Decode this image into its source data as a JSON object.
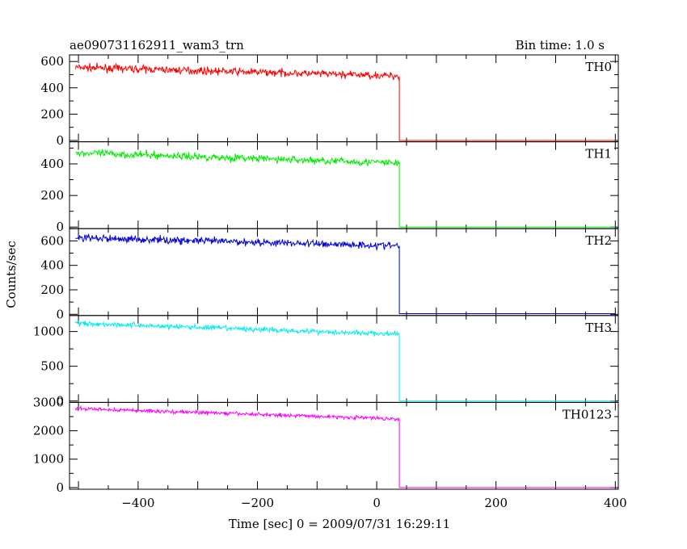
{
  "chart_data": {
    "type": "line",
    "title": "ae090731162911_wam3_trn",
    "bin_time_label": "Bin time: 1.0 s",
    "xlabel": "Time [sec] 0 = 2009/07/31 16:29:11",
    "ylabel": "Counts/sec",
    "xlim": [
      -515,
      405
    ],
    "x_ticks": [
      -400,
      -200,
      0,
      200,
      400
    ],
    "x_tick_labels": [
      "−400",
      "−200",
      "0",
      "200",
      "400"
    ],
    "drop_time": 38,
    "noise_seed": 7,
    "grid": false,
    "panels": [
      {
        "name": "TH0",
        "color": "#ff0000",
        "ylim": [
          -10,
          650
        ],
        "ticks": [
          0,
          200,
          400,
          600
        ],
        "tick_labels": [
          "0",
          "200",
          "400",
          "600"
        ],
        "start_level": 555,
        "end_level": 490,
        "noise": 25,
        "post_level": 0
      },
      {
        "name": "TH1",
        "color": "#00ee00",
        "ylim": [
          -10,
          540
        ],
        "ticks": [
          0,
          200,
          400
        ],
        "tick_labels": [
          "0",
          "200",
          "400"
        ],
        "start_level": 470,
        "end_level": 405,
        "noise": 22,
        "post_level": 0
      },
      {
        "name": "TH2",
        "color": "#0000dd",
        "ylim": [
          -10,
          700
        ],
        "ticks": [
          0,
          200,
          400,
          600
        ],
        "tick_labels": [
          "0",
          "200",
          "400",
          "600"
        ],
        "start_level": 625,
        "end_level": 560,
        "noise": 28,
        "post_level": 5
      },
      {
        "name": "TH3",
        "color": "#00eeee",
        "ylim": [
          -20,
          1230
        ],
        "ticks": [
          0,
          500,
          1000
        ],
        "tick_labels": [
          "0",
          "500",
          "1000"
        ],
        "start_level": 1120,
        "end_level": 960,
        "noise": 35,
        "post_level": 0
      },
      {
        "name": "TH0123",
        "color": "#ff00ff",
        "ylim": [
          -60,
          3000
        ],
        "ticks": [
          0,
          1000,
          2000,
          3000
        ],
        "tick_labels": [
          "0",
          "1000",
          "2000",
          "3000"
        ],
        "start_level": 2780,
        "end_level": 2420,
        "noise": 60,
        "post_level": 0
      }
    ]
  }
}
